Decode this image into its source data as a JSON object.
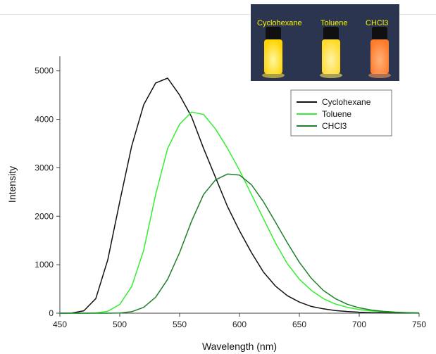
{
  "chart_data": {
    "type": "line",
    "title": "",
    "xlabel": "Wavelength (nm)",
    "ylabel": "Intensity",
    "xlim": [
      450,
      750
    ],
    "ylim": [
      0,
      5300
    ],
    "xticks": [
      450,
      500,
      550,
      600,
      650,
      700,
      750
    ],
    "yticks": [
      0,
      1000,
      2000,
      3000,
      4000,
      5000
    ],
    "grid": false,
    "legend_position": "top-right",
    "x": [
      450,
      460,
      470,
      480,
      490,
      500,
      510,
      520,
      530,
      540,
      550,
      560,
      570,
      580,
      590,
      600,
      610,
      620,
      630,
      640,
      650,
      660,
      670,
      680,
      690,
      700,
      710,
      720,
      730,
      740,
      750
    ],
    "series": [
      {
        "name": "Cyclohexane",
        "color": "#111111",
        "values": [
          0,
          5,
          50,
          300,
          1100,
          2300,
          3450,
          4300,
          4750,
          4850,
          4500,
          4050,
          3400,
          2800,
          2200,
          1700,
          1250,
          850,
          560,
          360,
          230,
          140,
          90,
          55,
          35,
          20,
          12,
          8,
          5,
          3,
          2
        ]
      },
      {
        "name": "Toluene",
        "color": "#33ee33",
        "values": [
          0,
          0,
          0,
          5,
          40,
          180,
          550,
          1300,
          2450,
          3400,
          3900,
          4150,
          4100,
          3800,
          3400,
          2950,
          2450,
          1950,
          1450,
          1020,
          700,
          470,
          300,
          190,
          120,
          75,
          45,
          28,
          18,
          10,
          6
        ]
      },
      {
        "name": "CHCl3",
        "color": "#1f7f2a",
        "values": [
          0,
          0,
          0,
          0,
          0,
          5,
          30,
          120,
          330,
          700,
          1250,
          1900,
          2450,
          2750,
          2870,
          2850,
          2650,
          2300,
          1880,
          1450,
          1050,
          720,
          470,
          300,
          185,
          110,
          65,
          38,
          22,
          12,
          6
        ]
      }
    ]
  },
  "photo": {
    "labels": [
      "Cyclohexane",
      "Toluene",
      "CHCl3"
    ],
    "vial_colors": [
      "#ffdf19",
      "#ffe43a",
      "#ff8a3a"
    ]
  }
}
